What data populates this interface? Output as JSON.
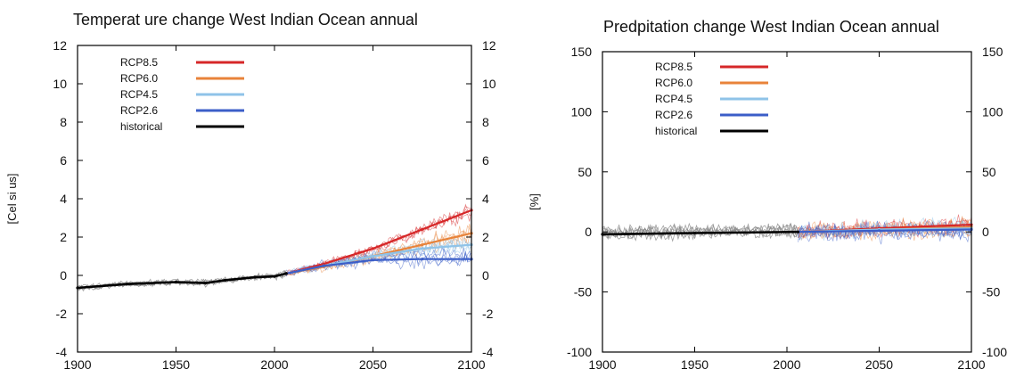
{
  "chart_data": [
    {
      "type": "line",
      "title": "Temperat ure change West Indian Ocean annual",
      "xlabel": "",
      "ylabel": "[Cel si us]",
      "xlim": [
        1900,
        2100
      ],
      "ylim": [
        -4,
        12
      ],
      "xticks": [
        "1900",
        "1950",
        "2000",
        "2050",
        "2100"
      ],
      "yticks": [
        "-4",
        "-2",
        "0",
        "2",
        "4",
        "6",
        "8",
        "10",
        "12"
      ],
      "grid": false,
      "legend_position": "top-left",
      "series": [
        {
          "name": "RCP8.5",
          "color": "#d62728",
          "x": [
            2006,
            2025,
            2050,
            2075,
            2100
          ],
          "values": [
            0.1,
            0.6,
            1.4,
            2.4,
            3.4
          ]
        },
        {
          "name": "RCP6.0",
          "color": "#e8833a",
          "x": [
            2006,
            2025,
            2050,
            2075,
            2100
          ],
          "values": [
            0.1,
            0.45,
            1.0,
            1.6,
            2.2
          ]
        },
        {
          "name": "RCP4.5",
          "color": "#8fc3e8",
          "x": [
            2006,
            2025,
            2050,
            2075,
            2100
          ],
          "values": [
            0.1,
            0.5,
            1.0,
            1.4,
            1.6
          ]
        },
        {
          "name": "RCP2.6",
          "color": "#3b5ec8",
          "x": [
            2006,
            2025,
            2050,
            2075,
            2100
          ],
          "values": [
            0.1,
            0.5,
            0.8,
            0.85,
            0.85
          ]
        },
        {
          "name": "historical",
          "color": "#000000",
          "x": [
            1900,
            1925,
            1950,
            1965,
            1975,
            1990,
            2000,
            2006
          ],
          "values": [
            -0.65,
            -0.45,
            -0.35,
            -0.4,
            -0.25,
            -0.1,
            -0.05,
            0.1
          ]
        }
      ]
    },
    {
      "type": "line",
      "title": "Predpitation change West Indian Ocean annual",
      "xlabel": "",
      "ylabel": "[%]",
      "xlim": [
        1900,
        2100
      ],
      "ylim": [
        -100,
        150
      ],
      "xticks": [
        "1900",
        "1950",
        "2000",
        "2050",
        "2100"
      ],
      "yticks": [
        "-100",
        "-50",
        "0",
        "50",
        "100",
        "150"
      ],
      "grid": false,
      "legend_position": "top-left",
      "series": [
        {
          "name": "RCP8.5",
          "color": "#d62728",
          "x": [
            2006,
            2050,
            2100
          ],
          "values": [
            0,
            3,
            6
          ]
        },
        {
          "name": "RCP6.0",
          "color": "#e8833a",
          "x": [
            2006,
            2050,
            2100
          ],
          "values": [
            0,
            2,
            4
          ]
        },
        {
          "name": "RCP4.5",
          "color": "#8fc3e8",
          "x": [
            2006,
            2050,
            2100
          ],
          "values": [
            0,
            2,
            3
          ]
        },
        {
          "name": "RCP2.6",
          "color": "#3b5ec8",
          "x": [
            2006,
            2050,
            2100
          ],
          "values": [
            0,
            1,
            2
          ]
        },
        {
          "name": "historical",
          "color": "#000000",
          "x": [
            1900,
            1950,
            2006
          ],
          "values": [
            -2,
            -1,
            0
          ]
        }
      ]
    }
  ]
}
